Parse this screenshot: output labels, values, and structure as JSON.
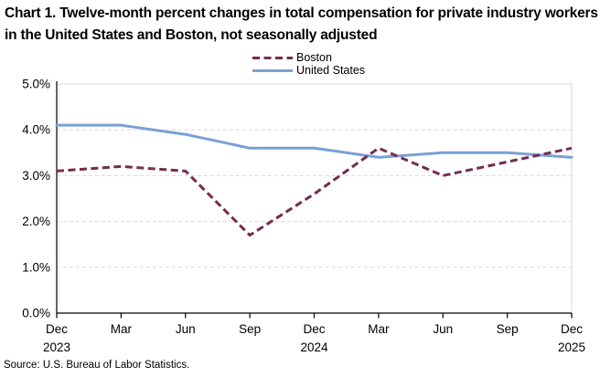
{
  "title": "Chart 1. Twelve-month percent changes in total compensation for private industry workers in the United States and Boston, not seasonally adjusted",
  "source": "Source: U.S. Bureau of Labor Statistics.",
  "colors": {
    "boston": "#732D4E",
    "united_states": "#7AA0D8",
    "gridline": "#D9D9D9",
    "axis": "#000000"
  },
  "chart_data": {
    "type": "line",
    "title": "Chart 1. Twelve-month percent changes in total compensation for private industry workers in the United States and Boston, not seasonally adjusted",
    "x_labels": [
      "Dec",
      "Mar",
      "Jun",
      "Sep",
      "Dec",
      "Mar",
      "Jun",
      "Sep",
      "Dec"
    ],
    "year_labels": [
      {
        "index": 0,
        "text": "2023"
      },
      {
        "index": 4,
        "text": "2024"
      },
      {
        "index": 8,
        "text": "2025"
      }
    ],
    "y_tick_labels": [
      "0.0%",
      "1.0%",
      "2.0%",
      "3.0%",
      "4.0%",
      "5.0%"
    ],
    "ylim": [
      0,
      5
    ],
    "grid": "horizontal dashed at 1% intervals",
    "legend_position": "top-center",
    "series": [
      {
        "name": "Boston",
        "style": "dashed",
        "color": "#732D4E",
        "values": [
          3.1,
          3.2,
          3.1,
          1.7,
          2.6,
          3.6,
          3.0,
          3.3,
          3.6
        ]
      },
      {
        "name": "United States",
        "style": "solid",
        "color": "#7AA0D8",
        "values": [
          4.1,
          4.1,
          3.9,
          3.6,
          3.6,
          3.4,
          3.5,
          3.5,
          3.4
        ]
      }
    ]
  }
}
